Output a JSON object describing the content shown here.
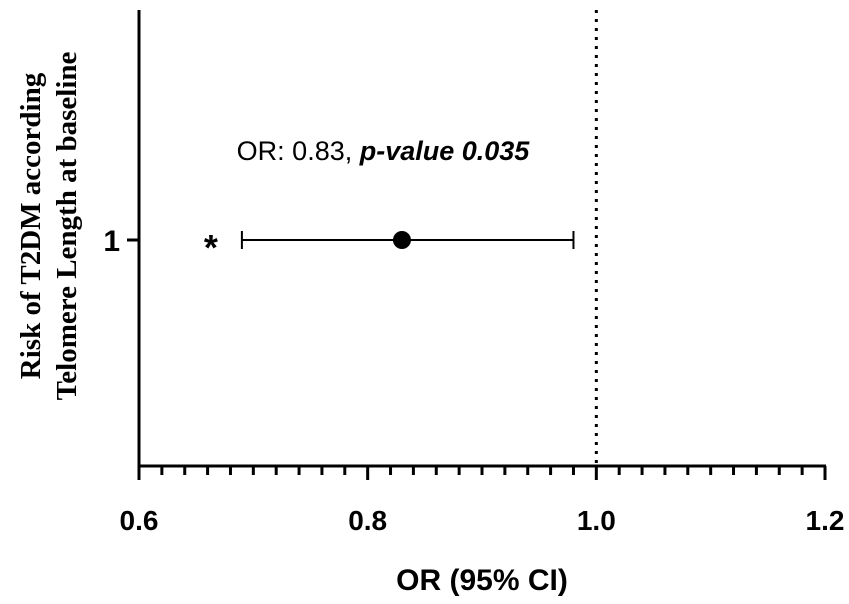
{
  "chart_data": {
    "type": "scatter",
    "subtype": "forest-plot",
    "ylabel_lines": [
      "Risk of T2DM according",
      "Telomere Length at baseline"
    ],
    "xlabel": "OR (95% CI)",
    "xlim": [
      0.6,
      1.2
    ],
    "x_major_ticks": [
      0.6,
      0.8,
      1.0,
      1.2
    ],
    "x_tick_labels": [
      "0.6",
      "0.8",
      "1.0",
      "1.2"
    ],
    "x_minor_step": 0.02,
    "y_tick_labels": [
      "1"
    ],
    "reference_line_x": 1.0,
    "points": [
      {
        "category": "1",
        "or": 0.83,
        "ci_low": 0.69,
        "ci_high": 0.98,
        "marker": "*"
      }
    ],
    "annotation": {
      "prefix": "OR: 0.83, ",
      "emphasis": "p-value 0.035"
    }
  }
}
